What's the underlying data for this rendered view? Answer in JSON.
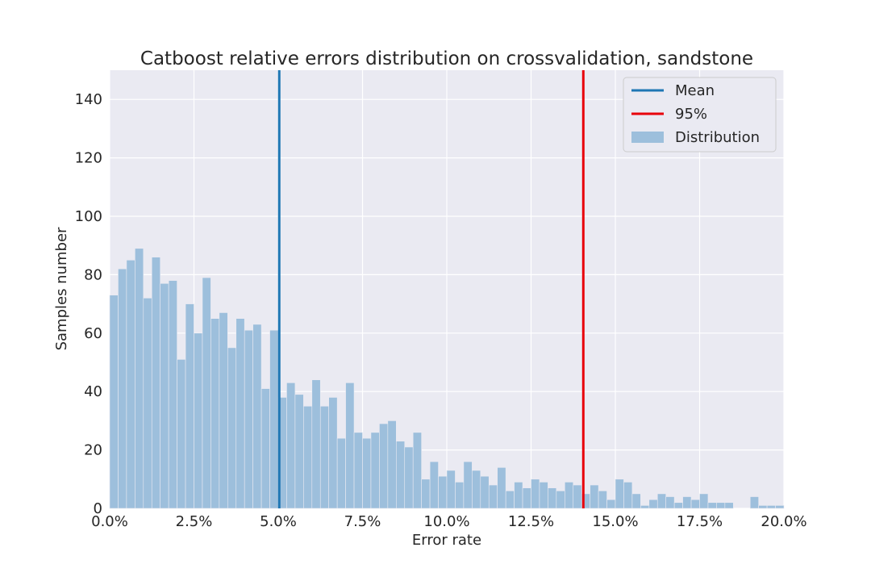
{
  "chart_data": {
    "type": "bar",
    "title": "Catboost relative errors distribution on crossvalidation, sandstone",
    "xlabel": "Error rate",
    "ylabel": "Samples number",
    "xlim": [
      0,
      20
    ],
    "ylim": [
      0,
      150
    ],
    "x_ticks": [
      0,
      2.5,
      5,
      7.5,
      10,
      12.5,
      15,
      17.5,
      20
    ],
    "x_tick_labels": [
      "0.0%",
      "2.5%",
      "5.0%",
      "7.5%",
      "10.0%",
      "12.5%",
      "15.0%",
      "17.5%",
      "20.0%"
    ],
    "y_ticks": [
      0,
      20,
      40,
      60,
      80,
      100,
      120,
      140
    ],
    "y_tick_labels": [
      "0",
      "20",
      "40",
      "60",
      "80",
      "100",
      "120",
      "140"
    ],
    "grid": true,
    "legend_position": "top-right",
    "bin_width": 0.25,
    "bin_start": 0,
    "values": [
      73,
      82,
      85,
      89,
      72,
      86,
      77,
      78,
      51,
      70,
      60,
      79,
      65,
      67,
      55,
      65,
      61,
      63,
      41,
      61,
      38,
      43,
      39,
      35,
      44,
      35,
      38,
      24,
      43,
      26,
      24,
      26,
      29,
      30,
      23,
      21,
      26,
      10,
      16,
      11,
      13,
      9,
      16,
      13,
      11,
      8,
      14,
      6,
      9,
      7,
      10,
      9,
      7,
      6,
      9,
      8,
      5,
      8,
      6,
      3,
      10,
      9,
      5,
      1,
      3,
      5,
      4,
      2,
      4,
      3,
      5,
      2,
      2,
      2,
      0,
      0,
      4,
      1,
      1,
      1
    ],
    "vlines": [
      {
        "name": "Mean",
        "x": 5.03,
        "color": "#1f77b4"
      },
      {
        "name": "95%",
        "x": 14.05,
        "color": "#e8000b"
      }
    ],
    "series": [
      {
        "name": "Distribution",
        "color": "#9dbfdc"
      }
    ]
  }
}
